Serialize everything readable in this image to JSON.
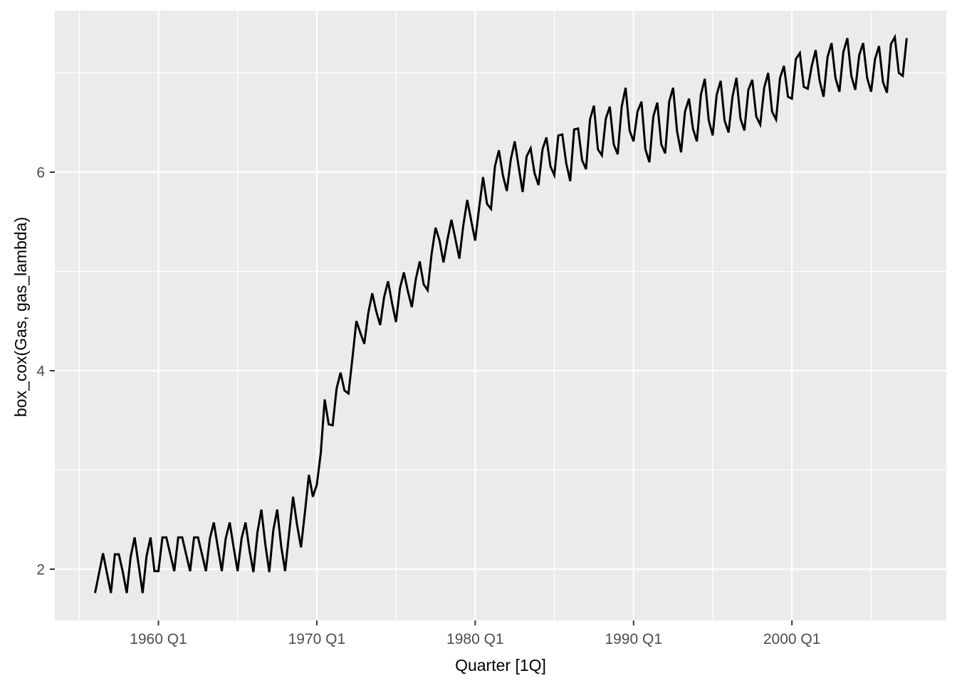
{
  "figure": {
    "kind": "ggplot2 time-series line chart",
    "background": "#FFFFFF"
  },
  "chart_data": {
    "type": "line",
    "title": "",
    "xlabel": "Quarter [1Q]",
    "ylabel": "box_cox(Gas, gas_lambda)",
    "series_name": "box_cox(Gas, gas_lambda)",
    "frequency": "quarterly",
    "x_start": {
      "year": 1956,
      "quarter": 1
    },
    "x_end": {
      "year": 2007,
      "quarter": 2
    },
    "x_tick_labels": [
      "1960 Q1",
      "1970 Q1",
      "1980 Q1",
      "1990 Q1",
      "2000 Q1"
    ],
    "x_tick_years": [
      1960,
      1970,
      1980,
      1990,
      2000
    ],
    "x_minor_years": [
      1955,
      1965,
      1975,
      1985,
      1995,
      2005
    ],
    "y_tick_labels": [
      "2",
      "4",
      "6"
    ],
    "y_ticks": [
      2,
      4,
      6
    ],
    "y_minor_ticks": [
      3,
      5,
      7
    ],
    "xlim_years": [
      1953.458,
      2009.75
    ],
    "ylim": [
      1.484,
      7.627
    ],
    "grid": true,
    "legend_position": "none",
    "colors": {
      "line": "#000000",
      "panel_background": "#EBEBEB",
      "gridline": "#FFFFFF",
      "tick_label_text": "#4D4D4D",
      "axis_title_text": "#000000",
      "tick_mark": "#333333"
    },
    "values": [
      1.76,
      1.96,
      2.16,
      1.96,
      1.76,
      2.15,
      2.15,
      1.97,
      1.76,
      2.13,
      2.32,
      2.04,
      1.76,
      2.13,
      2.32,
      1.98,
      1.98,
      2.32,
      2.32,
      2.15,
      1.98,
      2.32,
      2.32,
      2.15,
      1.98,
      2.32,
      2.32,
      2.15,
      1.98,
      2.31,
      2.47,
      2.22,
      1.98,
      2.31,
      2.47,
      2.22,
      1.98,
      2.31,
      2.47,
      2.19,
      1.97,
      2.37,
      2.6,
      2.25,
      1.97,
      2.39,
      2.6,
      2.23,
      1.98,
      2.36,
      2.73,
      2.45,
      2.22,
      2.57,
      2.95,
      2.73,
      2.85,
      3.17,
      3.71,
      3.46,
      3.45,
      3.82,
      3.98,
      3.8,
      3.77,
      4.13,
      4.5,
      4.38,
      4.27,
      4.58,
      4.78,
      4.6,
      4.46,
      4.74,
      4.9,
      4.68,
      4.49,
      4.83,
      4.99,
      4.8,
      4.64,
      4.92,
      5.1,
      4.87,
      4.81,
      5.18,
      5.44,
      5.31,
      5.09,
      5.32,
      5.52,
      5.33,
      5.13,
      5.46,
      5.72,
      5.51,
      5.31,
      5.64,
      5.95,
      5.68,
      5.63,
      6.06,
      6.22,
      5.97,
      5.81,
      6.13,
      6.31,
      6.05,
      5.8,
      6.16,
      6.24,
      5.99,
      5.87,
      6.23,
      6.35,
      6.06,
      5.97,
      6.37,
      6.38,
      6.09,
      5.91,
      6.43,
      6.44,
      6.12,
      6.03,
      6.53,
      6.67,
      6.23,
      6.17,
      6.54,
      6.66,
      6.28,
      6.18,
      6.66,
      6.85,
      6.42,
      6.31,
      6.61,
      6.71,
      6.23,
      6.1,
      6.56,
      6.7,
      6.28,
      6.19,
      6.71,
      6.85,
      6.41,
      6.2,
      6.61,
      6.74,
      6.44,
      6.31,
      6.78,
      6.94,
      6.52,
      6.37,
      6.78,
      6.92,
      6.52,
      6.4,
      6.76,
      6.95,
      6.54,
      6.42,
      6.83,
      6.93,
      6.56,
      6.48,
      6.85,
      7.0,
      6.61,
      6.53,
      6.95,
      7.07,
      6.76,
      6.74,
      7.14,
      7.2,
      6.86,
      6.84,
      7.07,
      7.23,
      6.92,
      6.76,
      7.16,
      7.3,
      6.95,
      6.81,
      7.21,
      7.35,
      6.97,
      6.83,
      7.18,
      7.3,
      6.95,
      6.81,
      7.14,
      7.27,
      6.91,
      6.8,
      7.29,
      7.36,
      7.0,
      6.97,
      7.35
    ]
  }
}
